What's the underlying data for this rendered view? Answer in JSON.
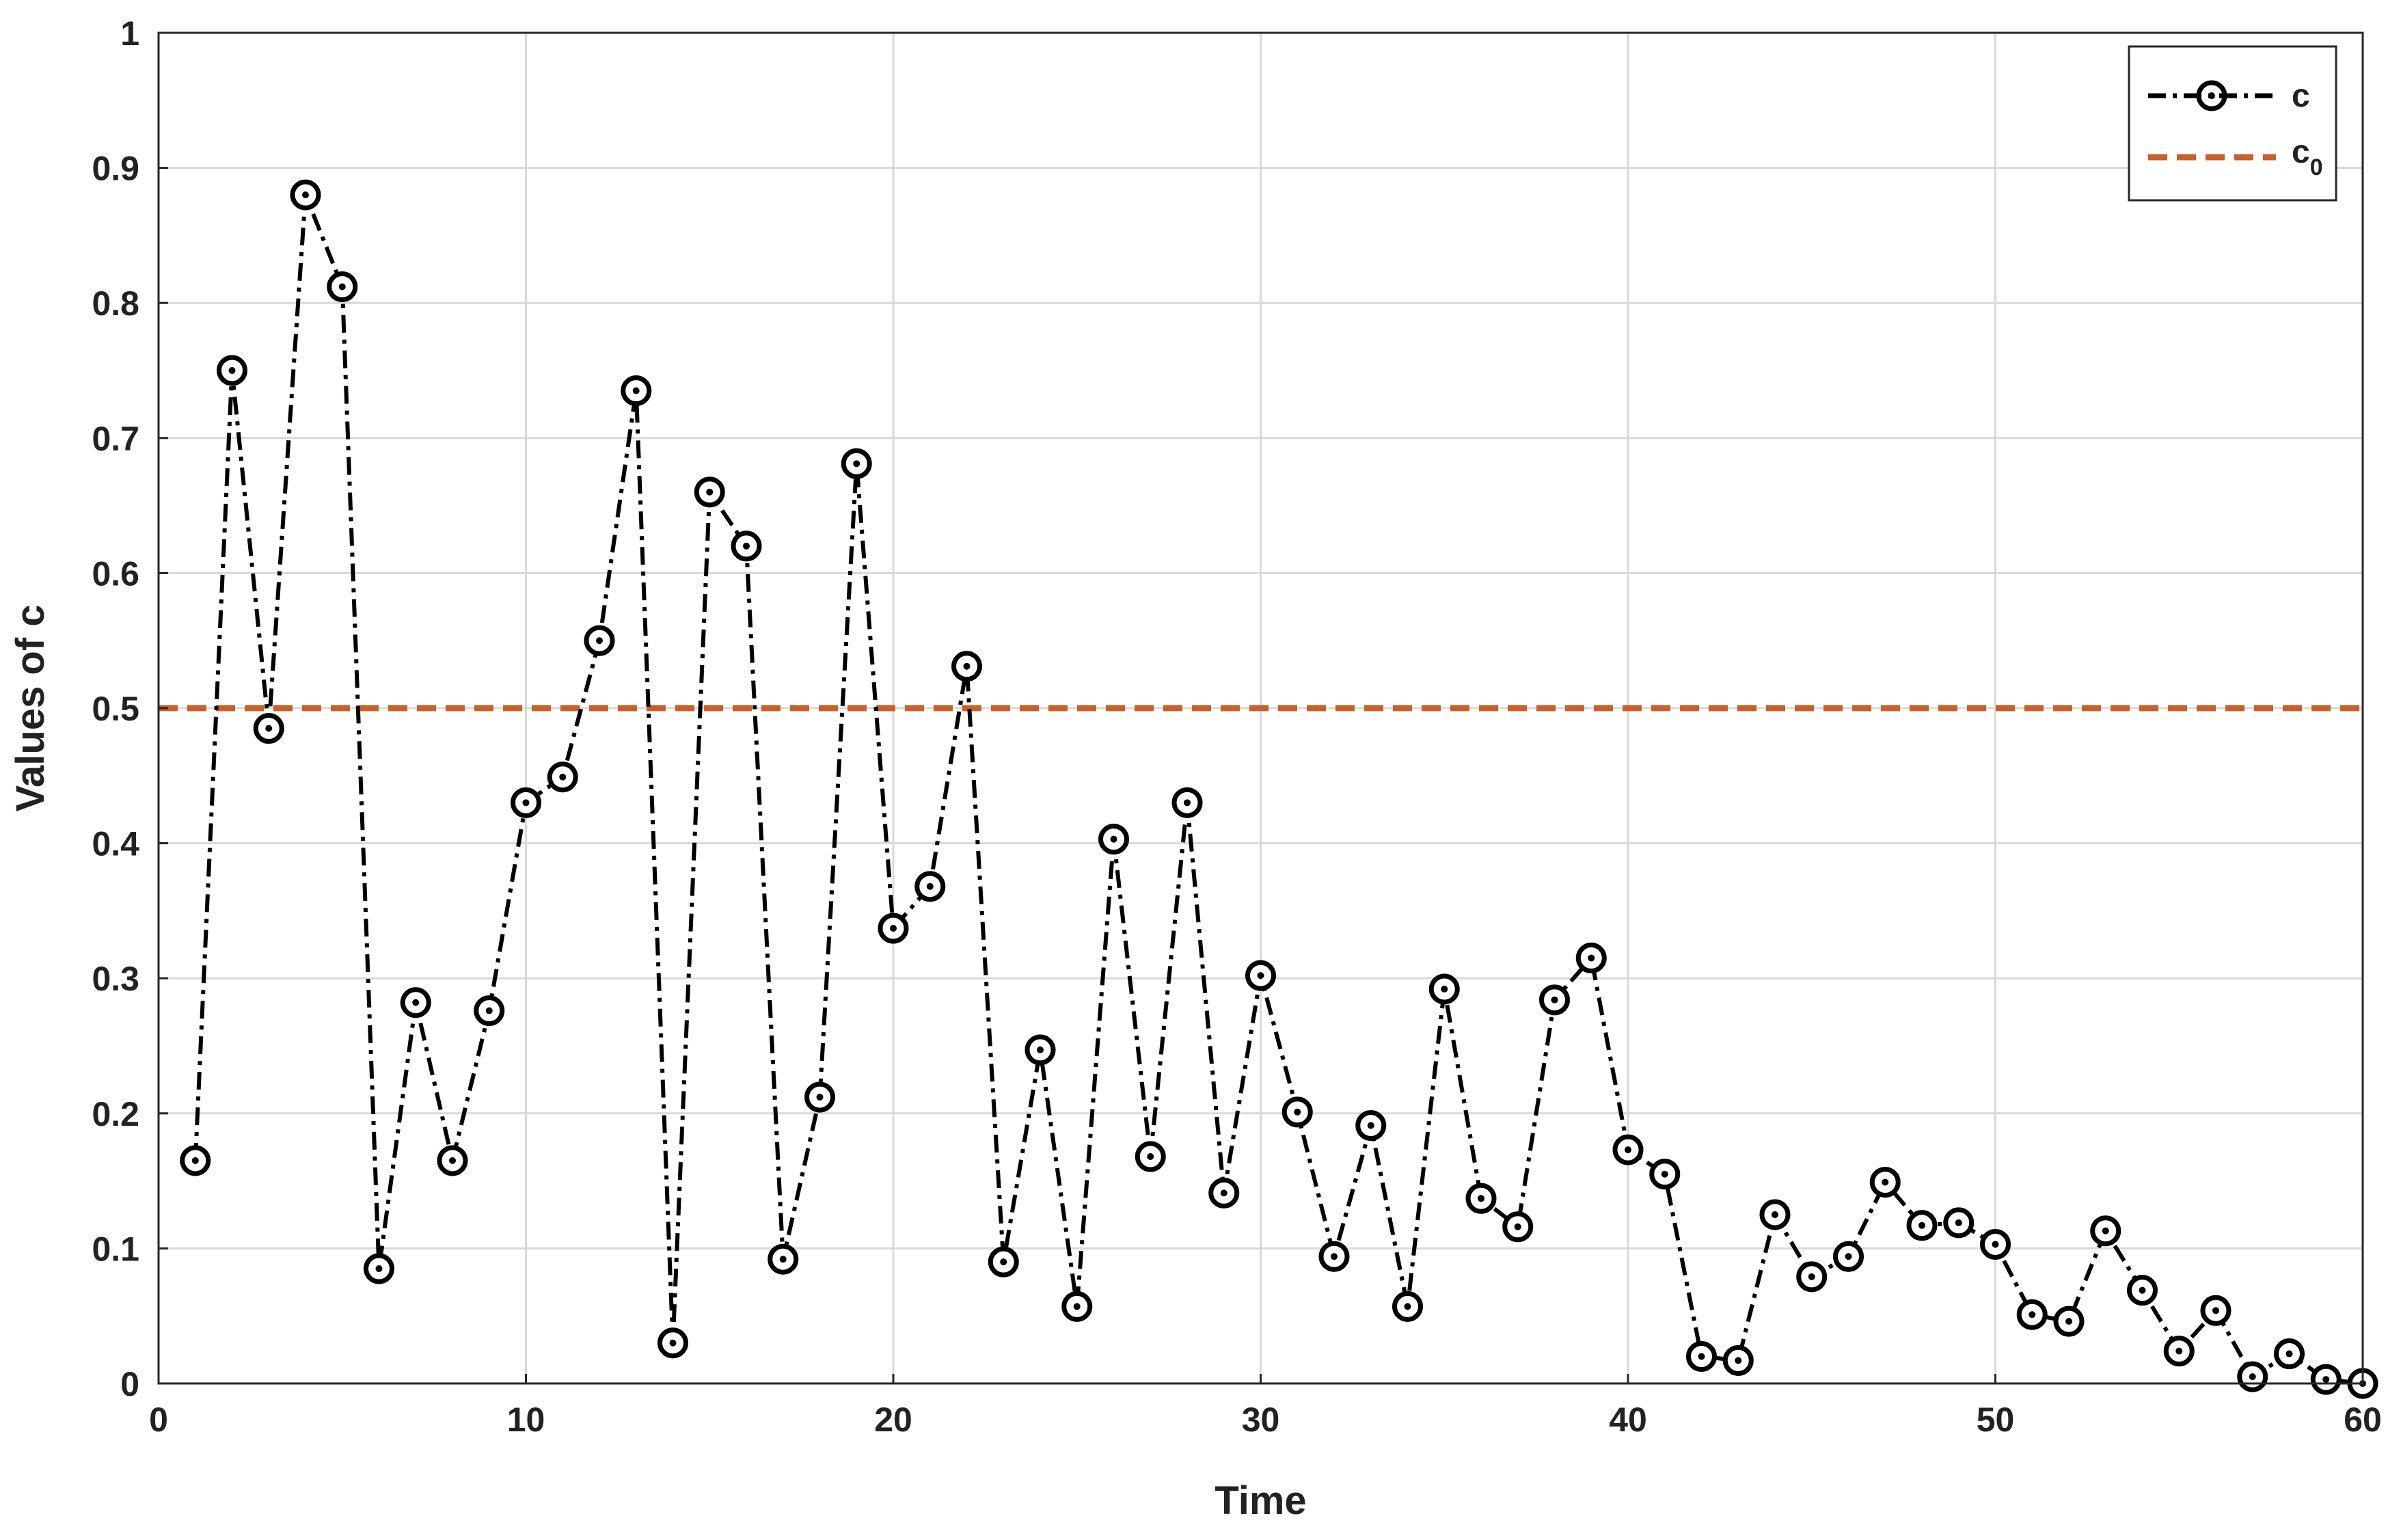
{
  "chart_data": {
    "type": "line",
    "title": "",
    "xlabel": "Time",
    "ylabel": "Values of c",
    "xlim": [
      0,
      60
    ],
    "ylim": [
      0,
      1
    ],
    "xticks": [
      0,
      10,
      20,
      30,
      40,
      50,
      60
    ],
    "yticks": [
      0,
      0.1,
      0.2,
      0.3,
      0.4,
      0.5,
      0.6,
      0.7,
      0.8,
      0.9,
      1
    ],
    "xtick_labels": [
      "0",
      "10",
      "20",
      "30",
      "40",
      "50",
      "60"
    ],
    "ytick_labels": [
      "0",
      "0.1",
      "0.2",
      "0.3",
      "0.4",
      "0.5",
      "0.6",
      "0.7",
      "0.8",
      "0.9",
      "1"
    ],
    "grid": true,
    "legend_position": "top-right",
    "series": [
      {
        "name": "c",
        "color": "#000000",
        "line_style": "dash-dot",
        "marker": "circle",
        "x": [
          1,
          2,
          3,
          4,
          5,
          6,
          7,
          8,
          9,
          10,
          11,
          12,
          13,
          14,
          15,
          16,
          17,
          18,
          19,
          20,
          21,
          22,
          23,
          24,
          25,
          26,
          27,
          28,
          29,
          30,
          31,
          32,
          33,
          34,
          35,
          36,
          37,
          38,
          39,
          40,
          41,
          42,
          43,
          44,
          45,
          46,
          47,
          48,
          49,
          50,
          51,
          52,
          53,
          54,
          55,
          56,
          57,
          58,
          59,
          60
        ],
        "y": [
          0.165,
          0.75,
          0.485,
          0.88,
          0.812,
          0.085,
          0.282,
          0.165,
          0.276,
          0.43,
          0.449,
          0.55,
          0.735,
          0.03,
          0.66,
          0.62,
          0.092,
          0.212,
          0.681,
          0.337,
          0.368,
          0.531,
          0.09,
          0.247,
          0.057,
          0.403,
          0.168,
          0.43,
          0.141,
          0.302,
          0.201,
          0.094,
          0.191,
          0.057,
          0.292,
          0.137,
          0.116,
          0.284,
          0.315,
          0.173,
          0.155,
          0.02,
          0.017,
          0.125,
          0.079,
          0.094,
          0.149,
          0.117,
          0.119,
          0.103,
          0.051,
          0.046,
          0.113,
          0.069,
          0.024,
          0.054,
          0.005,
          0.022,
          0.003,
          0.0
        ]
      },
      {
        "name": "c",
        "name_subscript": "0",
        "color": "#c8602a",
        "line_style": "dashed",
        "marker": "none",
        "x": [
          0,
          60
        ],
        "y": [
          0.5,
          0.5
        ]
      }
    ]
  }
}
